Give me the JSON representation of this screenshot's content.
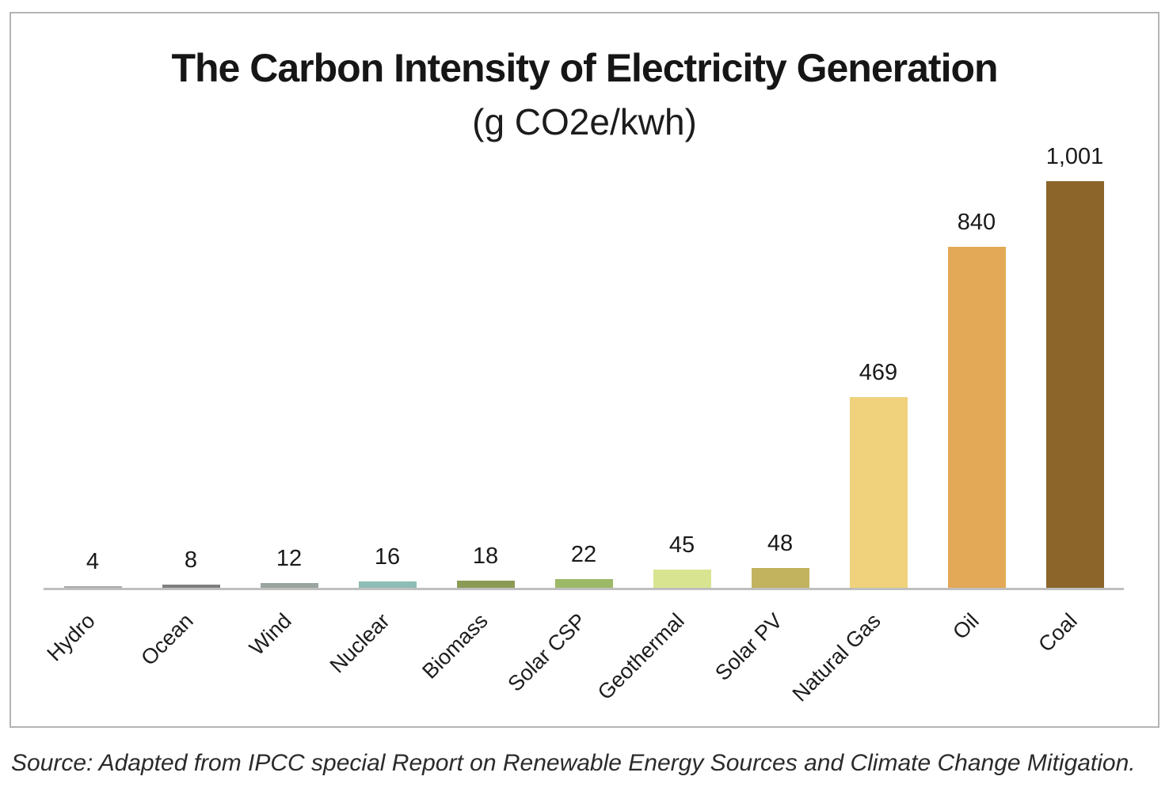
{
  "chart_data": {
    "type": "bar",
    "title": "The Carbon Intensity of Electricity Generation",
    "subtitle": "(g CO2e/kwh)",
    "ylabel": "g CO2e/kwh",
    "xlabel": "",
    "categories": [
      "Hydro",
      "Ocean",
      "Wind",
      "Nuclear",
      "Biomass",
      "Solar CSP",
      "Geothermal",
      "Solar PV",
      "Natural Gas",
      "Oil",
      "Coal"
    ],
    "values": [
      4,
      8,
      12,
      16,
      18,
      22,
      45,
      48,
      469,
      840,
      1001
    ],
    "value_labels": [
      "4",
      "8",
      "12",
      "16",
      "18",
      "22",
      "45",
      "48",
      "469",
      "840",
      "1,001"
    ],
    "bar_colors": [
      "#a9a9a9",
      "#7f7f7f",
      "#9ba5a0",
      "#8ebdb5",
      "#8b9b55",
      "#9cb967",
      "#d9e491",
      "#c2b35e",
      "#efd27b",
      "#e3a956",
      "#8b6529"
    ],
    "ylim": [
      0,
      1001
    ],
    "grid": false,
    "legend": null,
    "axis_color": "#bfbfbf",
    "x_label_rotation_deg": -45
  },
  "page": {
    "source_note": "Source: Adapted from IPCC special Report on Renewable Energy Sources and Climate Change Mitigation."
  }
}
